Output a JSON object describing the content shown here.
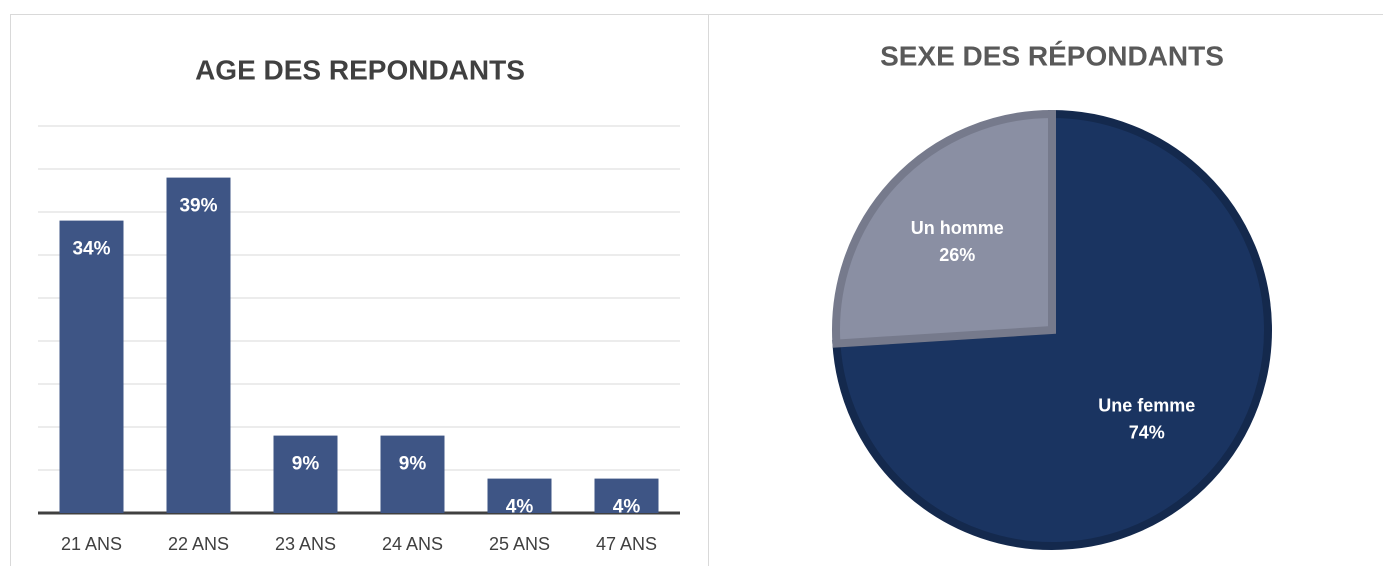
{
  "chart_data": [
    {
      "type": "bar",
      "title": "AGE DES REPONDANTS",
      "categories": [
        "21 ANS",
        "22 ANS",
        "23 ANS",
        "24 ANS",
        "25 ANS",
        "47 ANS"
      ],
      "values": [
        34,
        39,
        9,
        9,
        4,
        4
      ],
      "value_labels": [
        "34%",
        "39%",
        "9%",
        "9%",
        "4%",
        "4%"
      ],
      "color": "#3e5585",
      "ylim": [
        0,
        45
      ],
      "yticks": [
        0,
        5,
        10,
        15,
        20,
        25,
        30,
        35,
        40,
        45
      ],
      "grid": true
    },
    {
      "type": "pie",
      "title": "SEXE DES RÉPONDANTS",
      "categories": [
        "Une femme",
        "Un homme"
      ],
      "values": [
        74,
        26
      ],
      "value_labels": [
        "74%",
        "26%"
      ],
      "colors": [
        "#1a3461",
        "#8a8fa3"
      ]
    }
  ]
}
